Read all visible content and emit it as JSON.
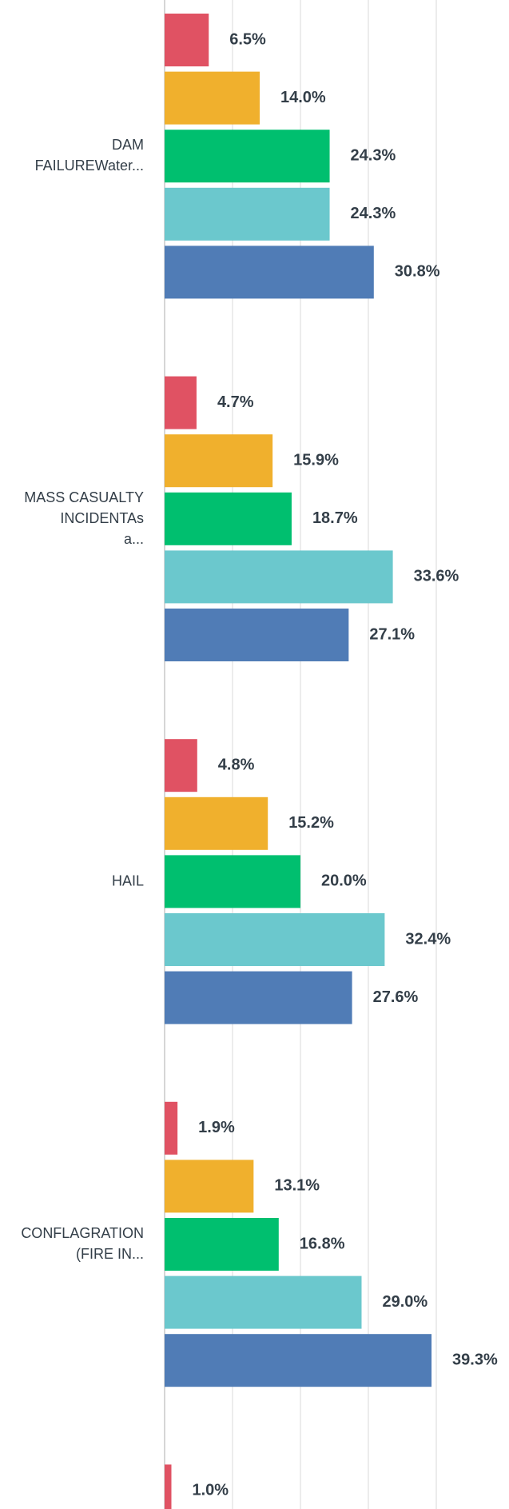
{
  "chart_data": {
    "type": "bar",
    "orientation": "horizontal",
    "categories": [
      "DAM FAILUREWater...",
      "MASS CASUALTY INCIDENTAs a...",
      "HAIL",
      "CONFLAGRATION (FIRE IN...",
      null
    ],
    "series": [
      {
        "color": "#e05263",
        "values": [
          6.5,
          4.7,
          4.8,
          1.9,
          1.0
        ],
        "value_labels": [
          "6.5%",
          "4.7%",
          "4.8%",
          "1.9%",
          "1.0%"
        ]
      },
      {
        "color": "#f0b02d",
        "values": [
          14.0,
          15.9,
          15.2,
          13.1,
          null
        ],
        "value_labels": [
          "14.0%",
          "15.9%",
          "15.2%",
          "13.1%",
          null
        ]
      },
      {
        "color": "#00bf6f",
        "values": [
          24.3,
          18.7,
          20.0,
          16.8,
          null
        ],
        "value_labels": [
          "24.3%",
          "18.7%",
          "20.0%",
          "16.8%",
          null
        ]
      },
      {
        "color": "#6bc8cd",
        "values": [
          24.3,
          33.6,
          32.4,
          29.0,
          null
        ],
        "value_labels": [
          "24.3%",
          "33.6%",
          "32.4%",
          "29.0%",
          null
        ]
      },
      {
        "color": "#507cb6",
        "values": [
          30.8,
          27.1,
          27.6,
          39.3,
          null
        ],
        "value_labels": [
          "30.8%",
          "27.1%",
          "27.6%",
          "39.3%",
          null
        ]
      }
    ],
    "xlim": [
      0,
      50
    ],
    "xticks": [
      0,
      10,
      20,
      30,
      40
    ],
    "grid": true
  }
}
